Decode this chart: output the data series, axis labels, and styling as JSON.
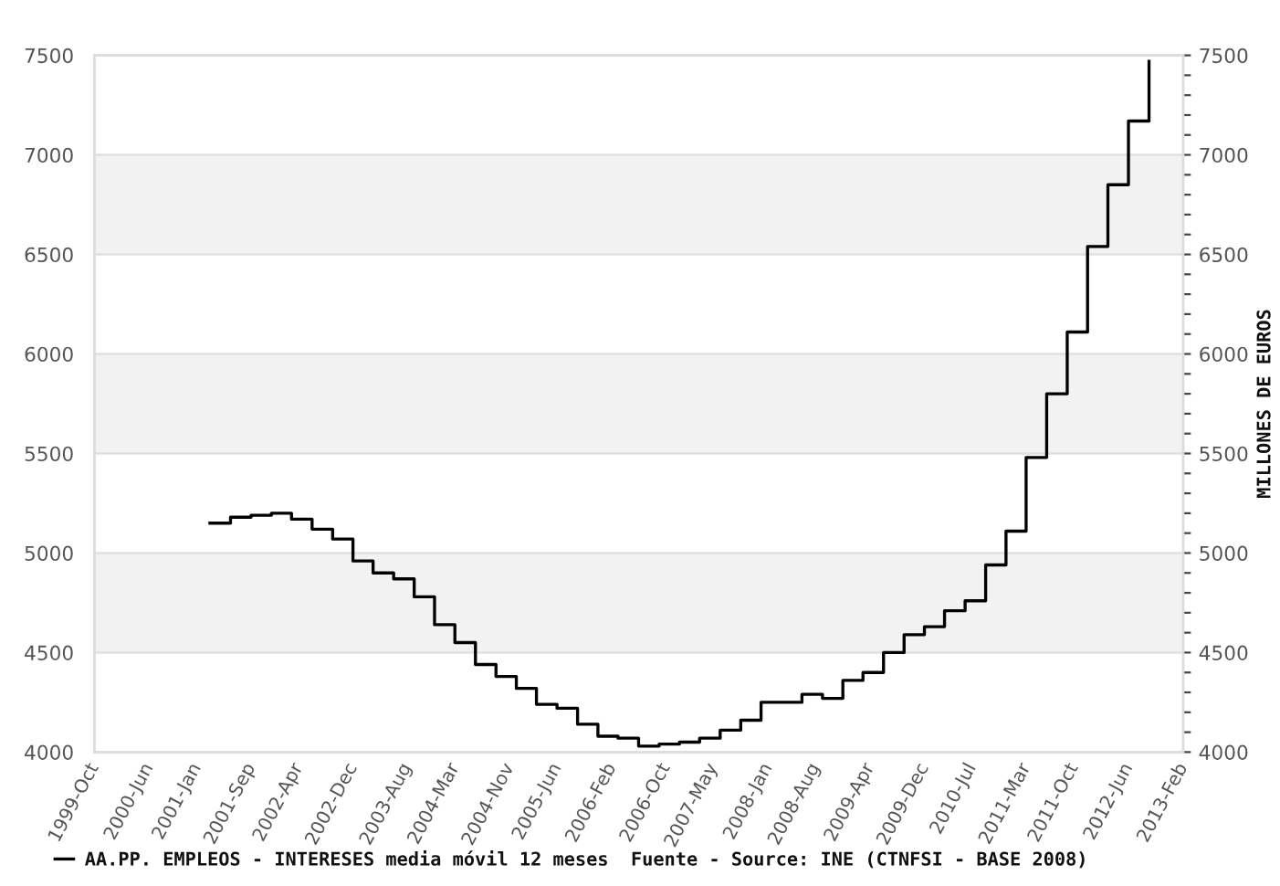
{
  "chart_data": {
    "type": "step",
    "x": [
      "2001-03",
      "2001-06",
      "2001-09",
      "2001-12",
      "2002-03",
      "2002-06",
      "2002-09",
      "2002-12",
      "2003-03",
      "2003-06",
      "2003-09",
      "2003-12",
      "2004-03",
      "2004-06",
      "2004-09",
      "2004-12",
      "2005-03",
      "2005-06",
      "2005-09",
      "2005-12",
      "2006-03",
      "2006-06",
      "2006-09",
      "2006-12",
      "2007-03",
      "2007-06",
      "2007-09",
      "2007-12",
      "2008-03",
      "2008-06",
      "2008-09",
      "2008-12",
      "2009-03",
      "2009-06",
      "2009-09",
      "2009-12",
      "2010-03",
      "2010-06",
      "2010-09",
      "2010-12",
      "2011-03",
      "2011-06",
      "2011-09",
      "2011-12",
      "2012-03",
      "2012-06",
      "2012-09"
    ],
    "series": [
      {
        "name": "AA.PP. EMPLEOS - INTERESES media móvil 12 meses  Fuente - Source: INE (CTNFSI - BASE 2008)",
        "color": "#000000",
        "values": [
          5150,
          5180,
          5190,
          5200,
          5170,
          5120,
          5070,
          4960,
          4900,
          4870,
          4780,
          4640,
          4550,
          4440,
          4380,
          4320,
          4240,
          4220,
          4140,
          4080,
          4070,
          4030,
          4040,
          4050,
          4070,
          4110,
          4160,
          4250,
          4250,
          4290,
          4270,
          4360,
          4400,
          4500,
          4590,
          4630,
          4710,
          4760,
          4940,
          5110,
          5480,
          5800,
          6110,
          6540,
          6850,
          7170,
          7470
        ]
      }
    ],
    "xlim": [
      "1999-10",
      "2013-02"
    ],
    "xticks": [
      {
        "value": "1999-10",
        "label": "1999-Oct"
      },
      {
        "value": "2000-06",
        "label": "2000-Jun"
      },
      {
        "value": "2001-01",
        "label": "2001-Jan"
      },
      {
        "value": "2001-09",
        "label": "2001-Sep"
      },
      {
        "value": "2002-04",
        "label": "2002-Apr"
      },
      {
        "value": "2002-12",
        "label": "2002-Dec"
      },
      {
        "value": "2003-08",
        "label": "2003-Aug"
      },
      {
        "value": "2004-03",
        "label": "2004-Mar"
      },
      {
        "value": "2004-11",
        "label": "2004-Nov"
      },
      {
        "value": "2005-06",
        "label": "2005-Jun"
      },
      {
        "value": "2006-02",
        "label": "2006-Feb"
      },
      {
        "value": "2006-10",
        "label": "2006-Oct"
      },
      {
        "value": "2007-05",
        "label": "2007-May"
      },
      {
        "value": "2008-01",
        "label": "2008-Jan"
      },
      {
        "value": "2008-08",
        "label": "2008-Aug"
      },
      {
        "value": "2009-04",
        "label": "2009-Apr"
      },
      {
        "value": "2009-12",
        "label": "2009-Dec"
      },
      {
        "value": "2010-07",
        "label": "2010-Jul"
      },
      {
        "value": "2011-03",
        "label": "2011-Mar"
      },
      {
        "value": "2011-10",
        "label": "2011-Oct"
      },
      {
        "value": "2012-06",
        "label": "2012-Jun"
      },
      {
        "value": "2013-02",
        "label": "2013-Feb"
      }
    ],
    "ylim": [
      4000,
      7500
    ],
    "yticks": [
      4000,
      4500,
      5000,
      5500,
      6000,
      6500,
      7000,
      7500
    ],
    "y2lim": [
      4000,
      7500
    ],
    "y2ticks": [
      4000,
      {
        "value": 4100,
        "label": null
      },
      {
        "value": 4200,
        "label": null
      },
      {
        "value": 4300,
        "label": null
      },
      {
        "value": 4400,
        "label": null
      },
      4500,
      {
        "value": 4600,
        "label": null
      },
      {
        "value": 4700,
        "label": null
      },
      {
        "value": 4800,
        "label": null
      },
      {
        "value": 4900,
        "label": null
      },
      5000,
      {
        "value": 5100,
        "label": null
      },
      {
        "value": 5200,
        "label": null
      },
      {
        "value": 5300,
        "label": null
      },
      {
        "value": 5400,
        "label": null
      },
      5500,
      {
        "value": 5600,
        "label": null
      },
      {
        "value": 5700,
        "label": null
      },
      {
        "value": 5800,
        "label": null
      },
      {
        "value": 5900,
        "label": null
      },
      6000,
      {
        "value": 6100,
        "label": null
      },
      {
        "value": 6200,
        "label": null
      },
      {
        "value": 6300,
        "label": null
      },
      {
        "value": 6400,
        "label": null
      },
      6500,
      {
        "value": 6600,
        "label": null
      },
      {
        "value": 6700,
        "label": null
      },
      {
        "value": 6800,
        "label": null
      },
      {
        "value": 6900,
        "label": null
      },
      7000,
      {
        "value": 7100,
        "label": null
      },
      {
        "value": 7200,
        "label": null
      },
      {
        "value": 7300,
        "label": null
      },
      {
        "value": 7400,
        "label": null
      },
      7500
    ],
    "y2label": "MILLONES DE EUROS",
    "bands": [
      {
        "axis": "y",
        "from": 4500,
        "to": 5000,
        "color": "#f2f2f2"
      },
      {
        "axis": "y",
        "from": 5500,
        "to": 6000,
        "color": "#f2f2f2"
      },
      {
        "axis": "y",
        "from": 6500,
        "to": 7000,
        "color": "#f2f2f2"
      }
    ],
    "grid": "y",
    "legend": "bottom"
  }
}
